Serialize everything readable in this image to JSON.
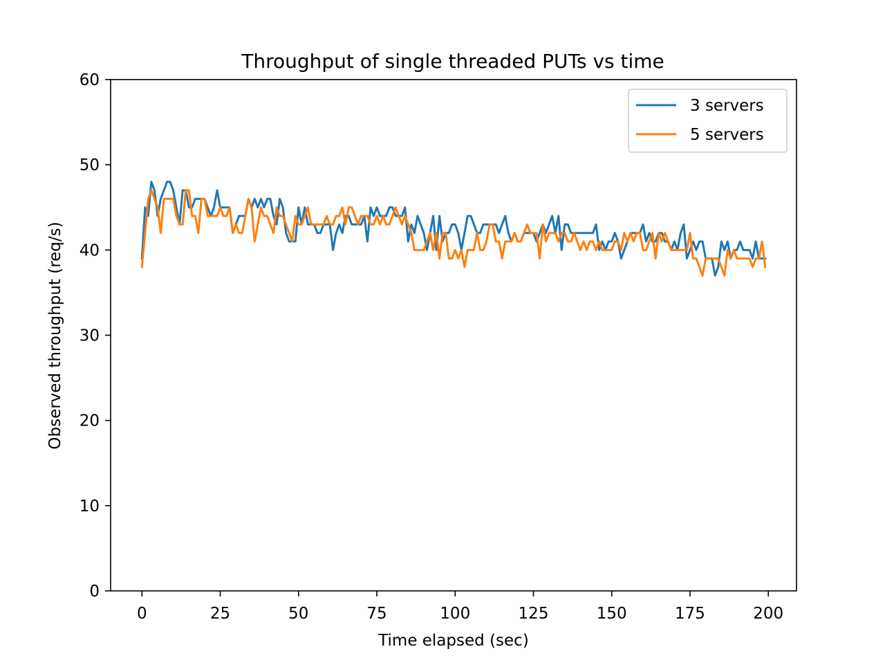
{
  "chart_data": {
    "type": "line",
    "title": "Throughput of single threaded PUTs vs time",
    "xlabel": "Time elapsed (sec)",
    "ylabel": "Observed throughput (req/s)",
    "xlim": [
      -10,
      209
    ],
    "ylim": [
      0,
      60
    ],
    "xticks": [
      0,
      25,
      50,
      75,
      100,
      125,
      150,
      175,
      200
    ],
    "yticks": [
      0,
      10,
      20,
      30,
      40,
      50,
      60
    ],
    "grid": false,
    "legend_position": "top-right",
    "series": [
      {
        "name": "3 servers",
        "color": "#1f77b4",
        "x_start": 0,
        "x_step": 1,
        "values": [
          39,
          45,
          44,
          48,
          47,
          44,
          46,
          47,
          48,
          48,
          47,
          45,
          43,
          47,
          47,
          45,
          45,
          46,
          46,
          46,
          46,
          45,
          44,
          45,
          47,
          45,
          45,
          45,
          45,
          42,
          43,
          44,
          44,
          44,
          46,
          45,
          46,
          45,
          46,
          45,
          46,
          46,
          44,
          43,
          46,
          45,
          42,
          41,
          41,
          41,
          45,
          43,
          45,
          43,
          43,
          43,
          42,
          42,
          43,
          43,
          43,
          40,
          42,
          43,
          42,
          44,
          44,
          43,
          43,
          43,
          43,
          44,
          41,
          45,
          44,
          45,
          44,
          44,
          44,
          45,
          45,
          44,
          44,
          44,
          45,
          41,
          43,
          42,
          44,
          43,
          42,
          40,
          42,
          44,
          40,
          44,
          41,
          42,
          42,
          43,
          43,
          42,
          40,
          42,
          44,
          44,
          43,
          42,
          42,
          43,
          43,
          43,
          43,
          43,
          42,
          43,
          44,
          42,
          41,
          42,
          41,
          41,
          42,
          42,
          42,
          42,
          41,
          42,
          43,
          42,
          43,
          44,
          42,
          44,
          40,
          43,
          43,
          42,
          42,
          42,
          42,
          42,
          42,
          42,
          42,
          43,
          40,
          41,
          40,
          41,
          41,
          42,
          41,
          39,
          40,
          41,
          42,
          42,
          42,
          42,
          43,
          41,
          42,
          41,
          41,
          42,
          42,
          41,
          41,
          40,
          41,
          40,
          42,
          43,
          39,
          40,
          41,
          40,
          41,
          41,
          39,
          39,
          39,
          37,
          38,
          41,
          40,
          41,
          39,
          40,
          40,
          41,
          40,
          40,
          40,
          39,
          41,
          39,
          39,
          39
        ]
      },
      {
        "name": "5 servers",
        "color": "#ff7f0e",
        "x_start": 0,
        "x_step": 1,
        "values": [
          38,
          42,
          46,
          47,
          46,
          45,
          42,
          46,
          46,
          46,
          46,
          44,
          43,
          43,
          47,
          47,
          44,
          44,
          42,
          46,
          46,
          44,
          44,
          44,
          44,
          45,
          44,
          44,
          45,
          42,
          43,
          42,
          42,
          44,
          46,
          45,
          41,
          43,
          45,
          44,
          44,
          43,
          42,
          45,
          44,
          44,
          43,
          42,
          41,
          44,
          43,
          43,
          44,
          45,
          43,
          43,
          43,
          43,
          43,
          44,
          43,
          43,
          44,
          44,
          45,
          43,
          45,
          45,
          44,
          43,
          44,
          44,
          44,
          43,
          43,
          44,
          43,
          44,
          43,
          43,
          44,
          45,
          44,
          43,
          44,
          43,
          42,
          40,
          40,
          40,
          40,
          41,
          42,
          40,
          42,
          39,
          42,
          42,
          39,
          39,
          40,
          39,
          40,
          38,
          40,
          40,
          40,
          42,
          40,
          40,
          41,
          43,
          43,
          41,
          41,
          39,
          41,
          41,
          41,
          42,
          41,
          41,
          42,
          43,
          42,
          42,
          42,
          39,
          43,
          41,
          42,
          42,
          42,
          41,
          42,
          42,
          41,
          41,
          42,
          41,
          40,
          41,
          40,
          41,
          41,
          40,
          41,
          40,
          40,
          40,
          40,
          41,
          41,
          40,
          42,
          41,
          42,
          41,
          42,
          42,
          40,
          40,
          41,
          42,
          39,
          42,
          41,
          42,
          41,
          40,
          40,
          40,
          40,
          40,
          40,
          42,
          39,
          39,
          38,
          37,
          39,
          39,
          39,
          39,
          39,
          38,
          37,
          40,
          39,
          40,
          39,
          39,
          39,
          39,
          39,
          38,
          39,
          39,
          41,
          38
        ]
      }
    ]
  }
}
